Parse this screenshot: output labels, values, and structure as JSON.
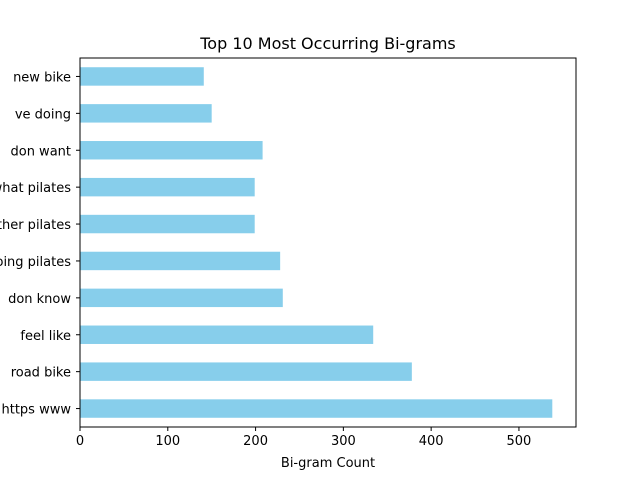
{
  "chart_data": {
    "type": "bar",
    "orientation": "horizontal",
    "title": "Top 10 Most Occurring Bi-grams",
    "xlabel": "Bi-gram Count",
    "ylabel": "",
    "categories": [
      "https www",
      "road bike",
      "feel like",
      "don know",
      "doing pilates",
      "other pilates",
      "what pilates",
      "don want",
      "ve doing",
      "new bike"
    ],
    "values": [
      538,
      378,
      334,
      231,
      228,
      199,
      199,
      208,
      150,
      141
    ],
    "xlim": [
      0,
      565
    ],
    "xticks": [
      0,
      100,
      200,
      300,
      400,
      500
    ],
    "grid": false,
    "bar_color": "#87ceeb"
  }
}
